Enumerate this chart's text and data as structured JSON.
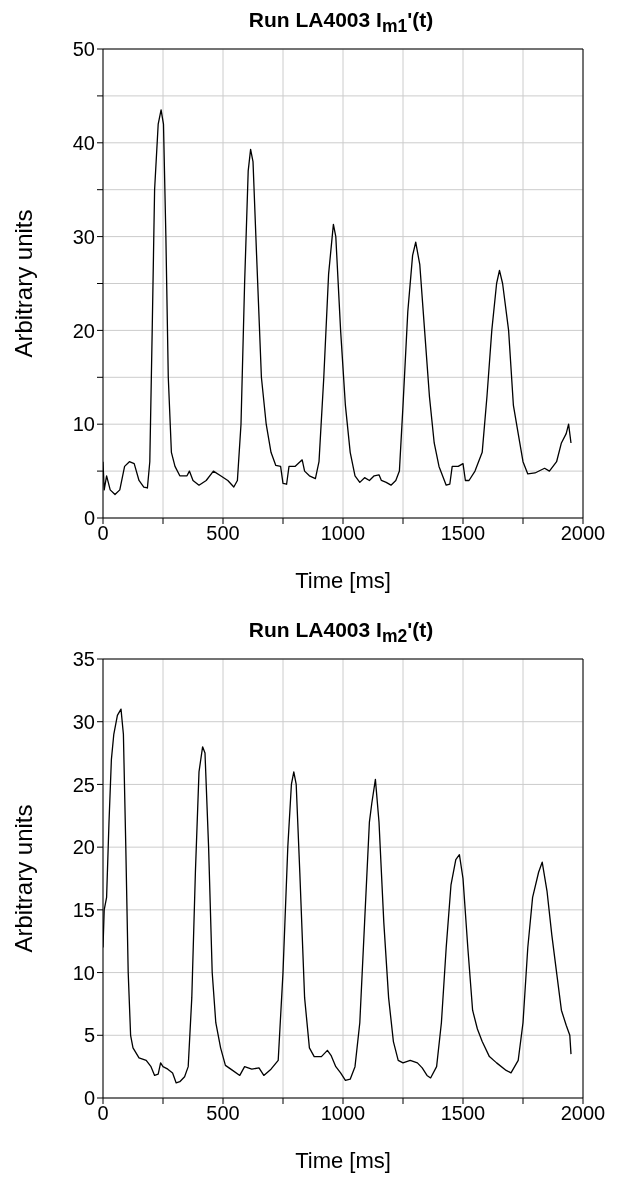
{
  "chart_data": [
    {
      "type": "line",
      "title": "Run LA4003 I$_{m1}$'(t)",
      "xlabel": "Time [ms]",
      "ylabel": "Arbitrary units",
      "color": "#000000",
      "grid": true,
      "marker": "none",
      "line_style": "solid",
      "xlim": [
        0,
        2000
      ],
      "xticks": [
        0,
        {
          "value": 250,
          "label": null
        },
        500,
        {
          "value": 750,
          "label": null
        },
        1000,
        {
          "value": 1250,
          "label": null
        },
        1500,
        {
          "value": 1750,
          "label": null
        },
        2000
      ],
      "ylim": [
        0,
        50
      ],
      "yticks": [
        0,
        {
          "value": 5,
          "label": null
        },
        10,
        {
          "value": 15,
          "label": null
        },
        20,
        {
          "value": 25,
          "label": null
        },
        30,
        {
          "value": 35,
          "label": null
        },
        40,
        {
          "value": 45,
          "label": null
        },
        50
      ],
      "x": [
        0,
        5,
        15,
        30,
        50,
        70,
        90,
        110,
        130,
        150,
        170,
        185,
        195,
        205,
        215,
        230,
        242,
        252,
        262,
        272,
        285,
        300,
        320,
        350,
        360,
        375,
        400,
        430,
        460,
        490,
        520,
        545,
        560,
        575,
        590,
        605,
        615,
        625,
        640,
        660,
        680,
        700,
        720,
        740,
        750,
        765,
        775,
        800,
        830,
        840,
        860,
        885,
        900,
        920,
        940,
        955,
        960,
        970,
        990,
        1010,
        1030,
        1050,
        1070,
        1090,
        1110,
        1130,
        1150,
        1160,
        1180,
        1200,
        1220,
        1235,
        1250,
        1270,
        1290,
        1303,
        1320,
        1340,
        1360,
        1380,
        1400,
        1430,
        1445,
        1455,
        1480,
        1500,
        1510,
        1525,
        1550,
        1580,
        1600,
        1620,
        1640,
        1652,
        1665,
        1690,
        1710,
        1730,
        1750,
        1770,
        1800,
        1840,
        1860,
        1890,
        1910,
        1930,
        1940,
        1950
      ],
      "values": [
        6,
        3,
        4.5,
        3,
        2.5,
        3,
        5.5,
        6,
        5.8,
        4,
        3.3,
        3.2,
        6,
        20,
        35,
        42,
        43.5,
        42,
        30,
        15,
        7,
        5.5,
        4.5,
        4.5,
        5,
        4,
        3.5,
        4,
        5,
        4.5,
        4,
        3.3,
        4,
        10,
        25,
        37,
        39.3,
        38,
        28,
        15,
        10,
        7,
        5.6,
        5.5,
        3.7,
        3.6,
        5.5,
        5.5,
        6.2,
        5,
        4.5,
        4.2,
        6,
        15,
        26,
        30,
        31.3,
        30,
        20,
        12,
        7,
        4.5,
        3.8,
        4.3,
        4,
        4.5,
        4.6,
        4,
        3.8,
        3.5,
        4,
        5,
        12,
        22,
        28,
        29.4,
        27,
        20,
        13,
        8,
        5.5,
        3.5,
        3.6,
        5.5,
        5.5,
        5.8,
        4,
        4,
        5,
        7,
        13,
        20,
        25,
        26.4,
        25,
        20,
        12,
        9,
        6,
        4.7,
        4.8,
        5.3,
        5,
        6,
        8,
        9,
        10,
        8
      ]
    },
    {
      "type": "line",
      "title": "Run LA4003 I$_{m2}$'(t)",
      "xlabel": "Time [ms]",
      "ylabel": "Arbitrary units",
      "color": "#000000",
      "grid": true,
      "marker": "none",
      "line_style": "solid",
      "xlim": [
        0,
        2000
      ],
      "xticks": [
        0,
        {
          "value": 250,
          "label": null
        },
        500,
        {
          "value": 750,
          "label": null
        },
        1000,
        {
          "value": 1250,
          "label": null
        },
        1500,
        {
          "value": 1750,
          "label": null
        },
        2000
      ],
      "ylim": [
        0,
        35
      ],
      "yticks": [
        0,
        5,
        10,
        15,
        20,
        25,
        30,
        35
      ],
      "x": [
        0,
        5,
        15,
        25,
        35,
        45,
        60,
        75,
        85,
        95,
        105,
        115,
        125,
        150,
        180,
        200,
        215,
        230,
        240,
        250,
        270,
        290,
        305,
        320,
        340,
        355,
        370,
        385,
        400,
        415,
        425,
        440,
        455,
        470,
        490,
        510,
        540,
        570,
        590,
        620,
        650,
        670,
        700,
        730,
        750,
        770,
        785,
        795,
        805,
        820,
        840,
        860,
        880,
        910,
        935,
        950,
        970,
        990,
        1010,
        1030,
        1050,
        1070,
        1090,
        1110,
        1120,
        1135,
        1150,
        1170,
        1190,
        1210,
        1230,
        1250,
        1280,
        1310,
        1330,
        1350,
        1365,
        1390,
        1410,
        1430,
        1450,
        1470,
        1485,
        1500,
        1520,
        1540,
        1560,
        1580,
        1610,
        1640,
        1680,
        1700,
        1730,
        1750,
        1770,
        1790,
        1815,
        1830,
        1850,
        1870,
        1890,
        1910,
        1930,
        1945,
        1950
      ],
      "values": [
        12,
        15,
        16,
        22,
        27,
        29,
        30.5,
        31,
        29,
        20,
        10,
        5,
        4,
        3.2,
        3,
        2.5,
        1.8,
        1.9,
        2.8,
        2.5,
        2.3,
        2,
        1.2,
        1.3,
        1.7,
        2.5,
        8,
        18,
        26,
        28,
        27.5,
        20,
        10,
        6,
        4,
        2.6,
        2.2,
        1.8,
        2.5,
        2.3,
        2.4,
        1.8,
        2.3,
        3,
        10,
        20,
        25,
        26,
        25,
        18,
        8,
        4,
        3.3,
        3.3,
        3.8,
        3.4,
        2.5,
        2,
        1.4,
        1.5,
        2.5,
        6,
        14,
        22,
        23.5,
        25.4,
        22,
        14,
        8,
        4.5,
        3,
        2.8,
        3,
        2.8,
        2.4,
        1.8,
        1.6,
        2.5,
        6,
        12,
        17,
        19,
        19.4,
        17.5,
        12,
        7,
        5.5,
        4.5,
        3.3,
        2.8,
        2.2,
        2,
        3,
        6,
        12,
        16,
        18,
        18.8,
        16.5,
        13,
        10,
        7,
        5.8,
        5,
        3.5
      ]
    }
  ]
}
